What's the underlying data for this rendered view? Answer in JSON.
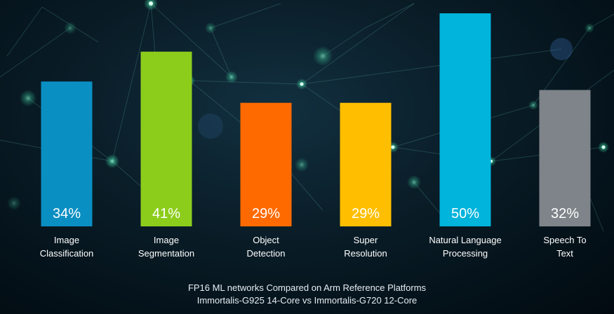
{
  "chart_data": {
    "type": "bar",
    "categories": [
      [
        "Image",
        "Classification"
      ],
      [
        "Image",
        "Segmentation"
      ],
      [
        "Object",
        "Detection"
      ],
      [
        "Super",
        "Resolution"
      ],
      [
        "Natural Language",
        "Processing"
      ],
      [
        "Speech To",
        "Text"
      ]
    ],
    "values": [
      34,
      41,
      29,
      29,
      50,
      32
    ],
    "data_labels": [
      "34%",
      "41%",
      "29%",
      "29%",
      "50%",
      "32%"
    ],
    "colors": [
      "#0a8fc3",
      "#8ccd1c",
      "#ff6a00",
      "#ffbf00",
      "#00b4dc",
      "#7e8489"
    ],
    "ylim": [
      0,
      50
    ],
    "grid": false,
    "legend": "none"
  },
  "caption": {
    "line1": "FP16 ML networks Compared on Arm Reference Platforms",
    "line2": "Immortalis-G925 14-Core vs Immortalis-G720 12-Core"
  }
}
